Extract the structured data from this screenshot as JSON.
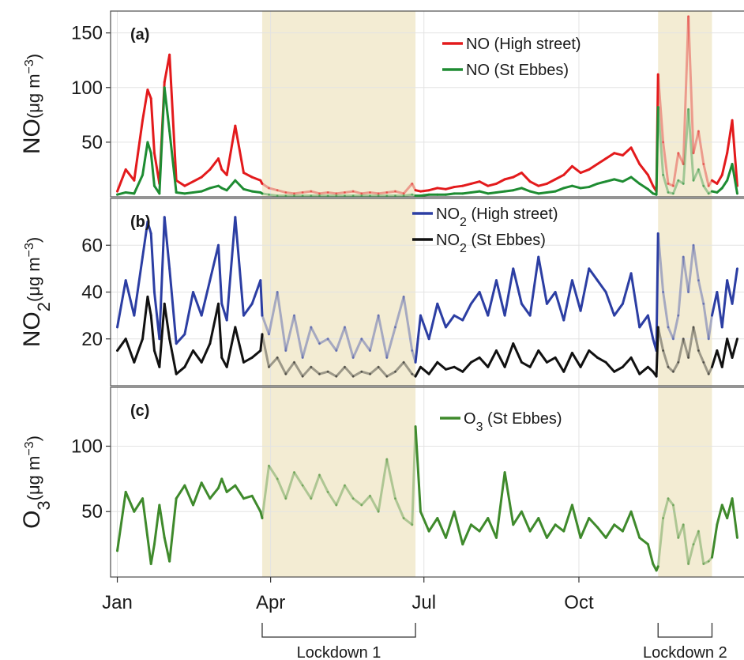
{
  "x_axis": {
    "ticks": [
      "Jan",
      "Apr",
      "Jul",
      "Oct"
    ],
    "tick_days": [
      0,
      91,
      182,
      274
    ],
    "domain_days": [
      -4,
      372
    ]
  },
  "lockdowns": [
    {
      "label": "Lockdown 1",
      "start_day": 86,
      "end_day": 177
    },
    {
      "label": "Lockdown 2",
      "start_day": 321,
      "end_day": 353
    }
  ],
  "colors": {
    "no_high": "#e31a1c",
    "no_ebbes": "#1e8c32",
    "no2_high": "#2c3ea3",
    "no2_ebbes": "#111111",
    "o3_ebbes": "#3f8a2c",
    "lockdown_fill": "#f3ecd3"
  },
  "chart_data": [
    {
      "type": "line",
      "panel_label": "(a)",
      "ylabel_main": "NO",
      "ylabel_unit_base": "μg m",
      "ylabel_unit_exp": "−3",
      "ylim": [
        0,
        170
      ],
      "yticks": [
        50,
        100,
        150
      ],
      "grid": true,
      "legend": "top-right",
      "x": [
        0,
        5,
        10,
        15,
        18,
        20,
        22,
        25,
        28,
        31,
        35,
        40,
        45,
        50,
        55,
        60,
        62,
        65,
        70,
        75,
        80,
        85,
        86,
        90,
        95,
        100,
        105,
        110,
        115,
        120,
        125,
        130,
        135,
        140,
        145,
        150,
        155,
        160,
        165,
        170,
        175,
        177,
        180,
        185,
        190,
        195,
        200,
        205,
        210,
        215,
        220,
        225,
        230,
        235,
        240,
        245,
        250,
        255,
        260,
        265,
        270,
        275,
        280,
        285,
        290,
        295,
        300,
        305,
        310,
        315,
        318,
        320,
        321,
        324,
        327,
        330,
        333,
        336,
        339,
        342,
        345,
        348,
        351,
        353,
        356,
        359,
        362,
        365,
        368
      ],
      "series": [
        {
          "name": "NO (High street)",
          "color_key": "no_high",
          "values": [
            5,
            25,
            15,
            70,
            98,
            90,
            40,
            12,
            105,
            130,
            15,
            10,
            14,
            18,
            25,
            35,
            25,
            20,
            65,
            22,
            18,
            15,
            12,
            8,
            6,
            4,
            3,
            4,
            5,
            3,
            4,
            3,
            4,
            5,
            3,
            4,
            3,
            4,
            5,
            3,
            12,
            6,
            5,
            6,
            8,
            7,
            9,
            10,
            12,
            14,
            10,
            12,
            16,
            18,
            22,
            14,
            10,
            12,
            16,
            20,
            28,
            22,
            25,
            30,
            35,
            40,
            38,
            45,
            30,
            20,
            10,
            5,
            112,
            50,
            12,
            10,
            40,
            30,
            165,
            40,
            60,
            30,
            10,
            15,
            12,
            20,
            40,
            70,
            10
          ]
        },
        {
          "name": "NO (St Ebbes)",
          "color_key": "no_ebbes",
          "values": [
            2,
            4,
            3,
            20,
            50,
            40,
            10,
            3,
            100,
            60,
            4,
            3,
            4,
            5,
            8,
            10,
            8,
            6,
            15,
            7,
            5,
            4,
            3,
            2,
            1,
            1,
            1,
            1,
            1,
            1,
            1,
            1,
            1,
            1,
            1,
            1,
            1,
            1,
            1,
            1,
            2,
            1,
            1,
            2,
            2,
            2,
            3,
            3,
            4,
            5,
            3,
            4,
            5,
            6,
            8,
            5,
            3,
            4,
            5,
            8,
            10,
            8,
            9,
            12,
            14,
            16,
            14,
            18,
            12,
            7,
            3,
            2,
            82,
            20,
            4,
            3,
            15,
            12,
            80,
            15,
            25,
            10,
            3,
            5,
            4,
            8,
            15,
            30,
            3
          ]
        }
      ]
    },
    {
      "type": "line",
      "panel_label": "(b)",
      "ylabel_main": "NO",
      "ylabel_sub": "2",
      "ylabel_unit_base": "μg m",
      "ylabel_unit_exp": "−3",
      "ylim": [
        0,
        80
      ],
      "yticks": [
        20,
        40,
        60
      ],
      "grid": true,
      "legend": "top-right",
      "x": [
        0,
        5,
        10,
        15,
        18,
        20,
        22,
        25,
        28,
        31,
        35,
        40,
        45,
        50,
        55,
        60,
        62,
        65,
        70,
        75,
        80,
        85,
        86,
        90,
        95,
        100,
        105,
        110,
        115,
        120,
        125,
        130,
        135,
        140,
        145,
        150,
        155,
        160,
        165,
        170,
        175,
        177,
        180,
        185,
        190,
        195,
        200,
        205,
        210,
        215,
        220,
        225,
        230,
        235,
        240,
        245,
        250,
        255,
        260,
        265,
        270,
        275,
        280,
        285,
        290,
        295,
        300,
        305,
        310,
        315,
        318,
        320,
        321,
        324,
        327,
        330,
        333,
        336,
        339,
        342,
        345,
        348,
        351,
        353,
        356,
        359,
        362,
        365,
        368
      ],
      "series": [
        {
          "name": "NO2 (High street)",
          "color_key": "no2_high",
          "values": [
            25,
            45,
            30,
            55,
            70,
            65,
            40,
            20,
            72,
            50,
            18,
            22,
            40,
            30,
            45,
            60,
            35,
            28,
            72,
            30,
            35,
            45,
            30,
            22,
            40,
            15,
            30,
            12,
            25,
            18,
            20,
            15,
            25,
            12,
            20,
            15,
            30,
            12,
            25,
            38,
            15,
            10,
            30,
            20,
            35,
            25,
            30,
            28,
            35,
            40,
            30,
            45,
            30,
            50,
            35,
            30,
            55,
            35,
            40,
            28,
            45,
            32,
            50,
            45,
            40,
            30,
            35,
            48,
            25,
            30,
            20,
            15,
            65,
            40,
            25,
            20,
            30,
            55,
            40,
            60,
            45,
            35,
            20,
            30,
            40,
            25,
            45,
            35,
            50
          ]
        },
        {
          "name": "NO2 (St Ebbes)",
          "color_key": "no2_ebbes",
          "values": [
            15,
            20,
            10,
            20,
            38,
            30,
            15,
            8,
            35,
            20,
            5,
            8,
            15,
            10,
            18,
            35,
            12,
            8,
            25,
            10,
            12,
            15,
            22,
            8,
            12,
            5,
            10,
            4,
            8,
            5,
            6,
            4,
            8,
            4,
            6,
            5,
            8,
            4,
            6,
            10,
            5,
            4,
            8,
            5,
            10,
            7,
            8,
            6,
            10,
            12,
            8,
            15,
            8,
            18,
            10,
            8,
            15,
            10,
            12,
            6,
            14,
            8,
            15,
            12,
            10,
            6,
            8,
            12,
            5,
            8,
            6,
            4,
            25,
            15,
            8,
            6,
            10,
            20,
            12,
            25,
            15,
            10,
            5,
            8,
            15,
            8,
            20,
            12,
            20
          ]
        }
      ]
    },
    {
      "type": "line",
      "panel_label": "(c)",
      "ylabel_main": "O",
      "ylabel_sub": "3",
      "ylabel_unit_base": "μg m",
      "ylabel_unit_exp": "−3",
      "ylim": [
        0,
        145
      ],
      "yticks": [
        50,
        100
      ],
      "grid": true,
      "legend": "top-right",
      "x": [
        0,
        5,
        10,
        15,
        18,
        20,
        22,
        25,
        28,
        31,
        35,
        40,
        45,
        50,
        55,
        60,
        62,
        65,
        70,
        75,
        80,
        85,
        86,
        90,
        95,
        100,
        105,
        110,
        115,
        120,
        125,
        130,
        135,
        140,
        145,
        150,
        155,
        160,
        165,
        170,
        175,
        177,
        180,
        185,
        190,
        195,
        200,
        205,
        210,
        215,
        220,
        225,
        230,
        235,
        240,
        245,
        250,
        255,
        260,
        265,
        270,
        275,
        280,
        285,
        290,
        295,
        300,
        305,
        310,
        315,
        318,
        320,
        321,
        324,
        327,
        330,
        333,
        336,
        339,
        342,
        345,
        348,
        351,
        353,
        356,
        359,
        362,
        365,
        368
      ],
      "series": [
        {
          "name": "O3 (St Ebbes)",
          "color_key": "o3_ebbes",
          "values": [
            20,
            65,
            50,
            60,
            30,
            10,
            25,
            55,
            30,
            12,
            60,
            70,
            55,
            72,
            60,
            68,
            75,
            65,
            70,
            60,
            62,
            50,
            45,
            85,
            75,
            60,
            80,
            70,
            60,
            78,
            65,
            55,
            70,
            60,
            55,
            62,
            50,
            90,
            60,
            45,
            40,
            115,
            50,
            35,
            45,
            30,
            50,
            25,
            40,
            35,
            45,
            30,
            80,
            40,
            50,
            35,
            45,
            30,
            40,
            35,
            55,
            30,
            45,
            38,
            30,
            40,
            35,
            50,
            30,
            25,
            10,
            5,
            8,
            45,
            60,
            55,
            30,
            40,
            10,
            25,
            35,
            10,
            12,
            15,
            40,
            55,
            45,
            60,
            30
          ]
        }
      ]
    }
  ]
}
